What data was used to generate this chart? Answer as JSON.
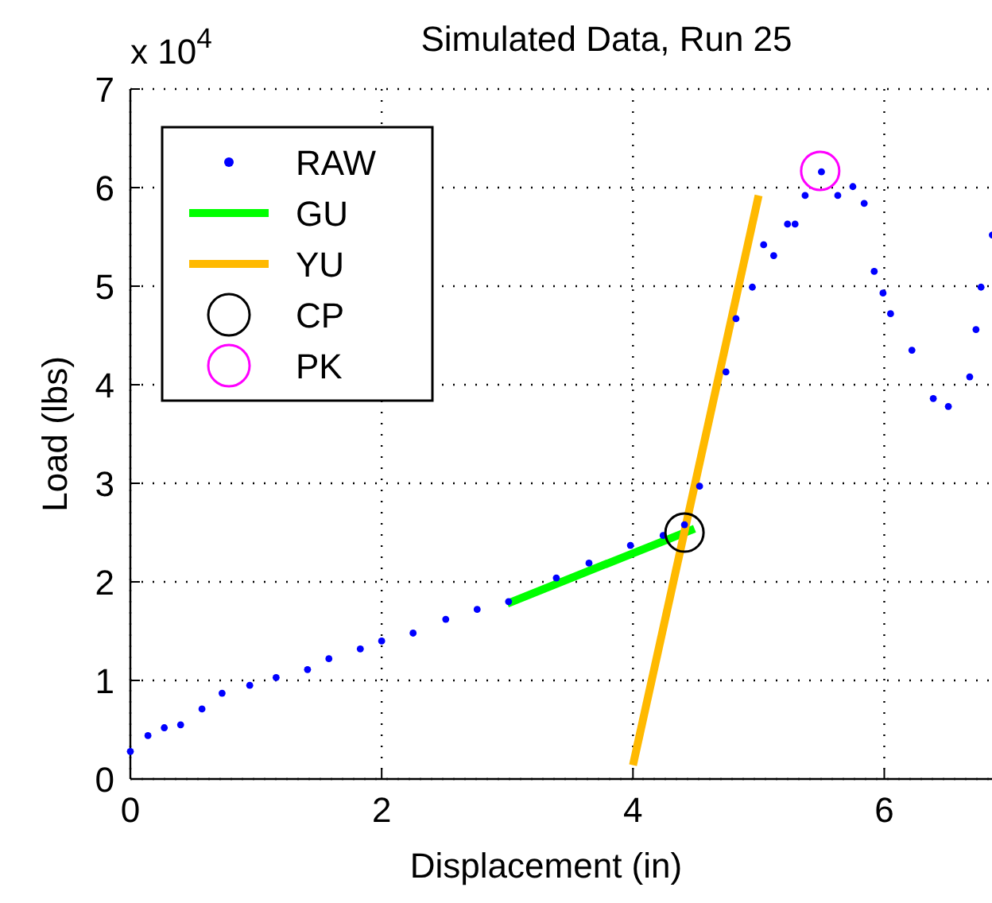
{
  "chart_data": {
    "type": "scatter",
    "title": "Simulated Data, Run 25",
    "xlabel": "Displacement (in)",
    "ylabel": "Load (lbs)",
    "annotations": [
      "x 10$^{4}$"
    ],
    "xlim": [
      0,
      6.87
    ],
    "xticks": [
      0,
      2,
      4,
      6
    ],
    "ylim": [
      0,
      7
    ],
    "yticks": [
      0,
      1,
      2,
      3,
      4,
      5,
      6,
      7
    ],
    "grid": true,
    "legend": "top left",
    "series": [
      {
        "name": "RAW",
        "marker": "circle",
        "color": "#0000ff",
        "x": [
          0,
          0.14,
          0.27,
          0.4,
          0.57,
          0.73,
          0.95,
          1.16,
          1.41,
          1.58,
          1.83,
          2.0,
          2.25,
          2.51,
          2.76,
          3.01,
          3.39,
          3.65,
          3.98,
          4.24,
          4.41,
          4.53,
          4.74,
          4.82,
          4.95,
          5.04,
          5.12,
          5.23,
          5.29,
          5.37,
          5.5,
          5.63,
          5.75,
          5.84,
          5.92,
          5.99,
          6.05,
          6.22,
          6.39,
          6.51,
          6.68,
          6.73,
          6.77,
          6.86
        ],
        "values": [
          0.28,
          0.44,
          0.52,
          0.55,
          0.71,
          0.87,
          0.95,
          1.03,
          1.11,
          1.22,
          1.32,
          1.4,
          1.48,
          1.62,
          1.72,
          1.8,
          2.04,
          2.19,
          2.37,
          2.47,
          2.58,
          2.97,
          4.13,
          4.67,
          4.99,
          5.42,
          5.31,
          5.63,
          5.63,
          5.92,
          6.16,
          5.92,
          6.01,
          5.84,
          5.15,
          4.93,
          4.72,
          4.35,
          3.86,
          3.78,
          4.08,
          4.56,
          4.99,
          5.52
        ]
      },
      {
        "name": "GU",
        "type": "line",
        "line_style": "solid",
        "color": "#00ff00",
        "x": [
          3.0,
          4.49
        ],
        "values": [
          1.78,
          2.54
        ]
      },
      {
        "name": "YU",
        "type": "line",
        "line_style": "solid",
        "color": "#ffb900",
        "x": [
          4.0,
          5.0
        ],
        "values": [
          0.14,
          5.92
        ]
      },
      {
        "name": "CP",
        "type": "scatter",
        "marker": "circle",
        "color": "#000000",
        "x": [
          4.41
        ],
        "values": [
          2.5
        ]
      },
      {
        "name": "PK",
        "type": "scatter",
        "marker": "circle",
        "color": "#ff00ff",
        "x": [
          5.49
        ],
        "values": [
          6.17
        ]
      }
    ]
  }
}
